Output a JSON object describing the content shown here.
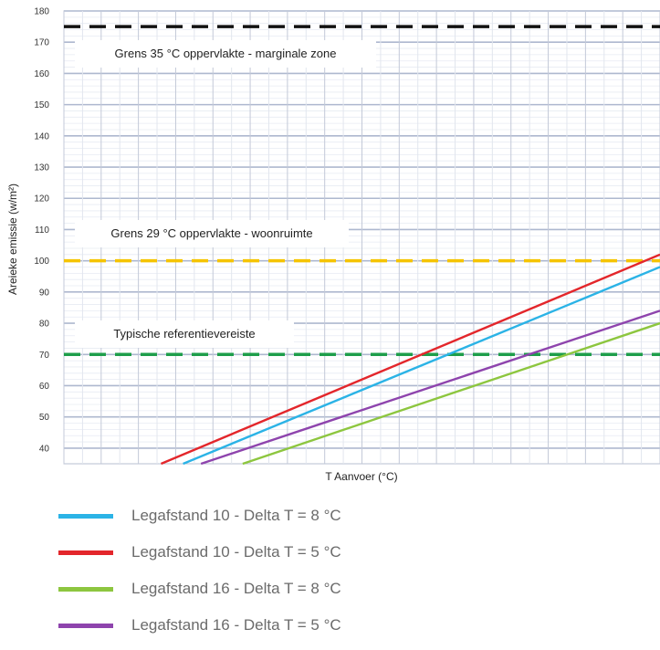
{
  "chart_data": {
    "type": "line",
    "xlabel": "T Aanvoer (°C)",
    "ylabel": "Areieke emissie (w/m²)",
    "ylim": [
      35,
      180
    ],
    "yticks": [
      40,
      50,
      60,
      70,
      80,
      90,
      100,
      110,
      120,
      130,
      140,
      150,
      160,
      170,
      180
    ],
    "grid": true,
    "thresholds": [
      {
        "label": "Grens 35 °C oppervlakte - marginale zone",
        "value": 175,
        "color": "#111111"
      },
      {
        "label": "Grens 29 °C oppervlakte - woonruimte",
        "value": 100,
        "color": "#f5c400"
      },
      {
        "label": "Typische referentievereiste",
        "value": 70,
        "color": "#1e9e4a"
      }
    ],
    "series": [
      {
        "name": "Legafstand 10 - Delta T = 8 °C",
        "color": "#2bb3e6",
        "y_start": 35,
        "y_end": 98,
        "x_start_frac": 0.2
      },
      {
        "name": "Legafstand 10 - Delta T = 5 °C",
        "color": "#e3262b",
        "y_start": 35,
        "y_end": 102,
        "x_start_frac": 0.163
      },
      {
        "name": "Legafstand 16 - Delta T = 8 °C",
        "color": "#8dc63f",
        "y_start": 35,
        "y_end": 80,
        "x_start_frac": 0.3
      },
      {
        "name": "Legafstand 16 - Delta T = 5 °C",
        "color": "#8e44ad",
        "y_start": 35,
        "y_end": 84,
        "x_start_frac": 0.23
      }
    ]
  }
}
